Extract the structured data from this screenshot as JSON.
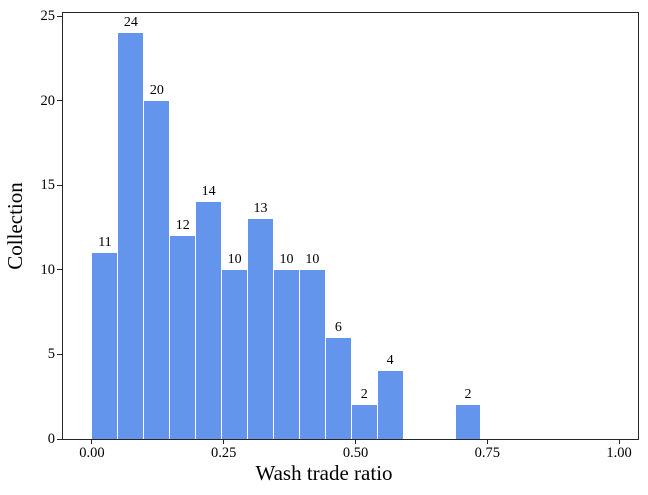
{
  "chart_data": {
    "type": "bar",
    "subtype": "histogram",
    "title": "",
    "xlabel": "Wash trade ratio",
    "ylabel": "Collection",
    "bin_start": 0.0,
    "bin_width": 0.0492,
    "counts": [
      11,
      24,
      20,
      12,
      14,
      10,
      13,
      10,
      10,
      6,
      2,
      4,
      0,
      0,
      2
    ],
    "bar_value_labels": [
      "11",
      "24",
      "20",
      "12",
      "14",
      "10",
      "13",
      "10",
      "10",
      "6",
      "2",
      "4",
      "",
      "",
      "2"
    ],
    "x_tick_labels": [
      "0.00",
      "0.25",
      "0.50",
      "0.75",
      "1.00"
    ],
    "x_tick_values": [
      0,
      0.25,
      0.5,
      0.75,
      1.0
    ],
    "y_tick_labels": [
      "0",
      "5",
      "10",
      "15",
      "20",
      "25"
    ],
    "y_tick_values": [
      0,
      5,
      10,
      15,
      20,
      25
    ],
    "xlim": [
      -0.055,
      1.036
    ],
    "ylim": [
      0,
      25.2
    ],
    "bar_color": "#6495ED",
    "bar_edge_color": "#FFFFFF",
    "axis_color": "#262626",
    "text_color": "#000000",
    "background_color": "#FFFFFF",
    "grid": "off",
    "legend": "none"
  }
}
